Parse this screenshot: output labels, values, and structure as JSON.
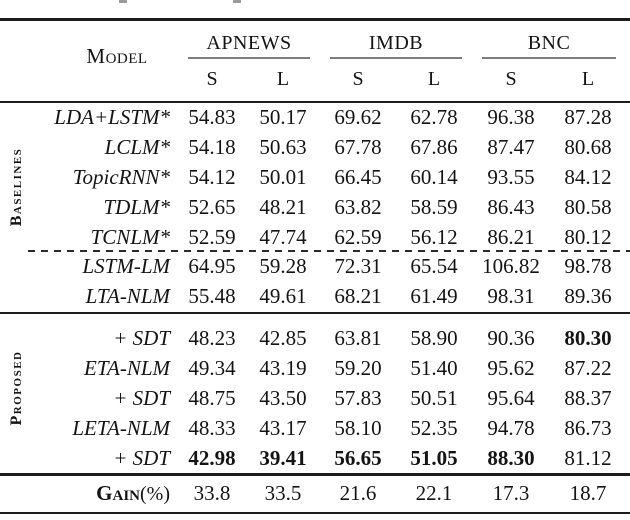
{
  "header": {
    "model_label": "Model",
    "groups": [
      "APNEWS",
      "IMDB",
      "BNC"
    ],
    "sub_columns": [
      "S",
      "L",
      "S",
      "L",
      "S",
      "L"
    ]
  },
  "sections": [
    {
      "side_label": "Baselines",
      "rows": [
        {
          "model": "LDA+LSTM*",
          "values": [
            "54.83",
            "50.17",
            "69.62",
            "62.78",
            "96.38",
            "87.28"
          ]
        },
        {
          "model": "LCLM*",
          "values": [
            "54.18",
            "50.63",
            "67.78",
            "67.86",
            "87.47",
            "80.68"
          ]
        },
        {
          "model": "TopicRNN*",
          "values": [
            "54.12",
            "50.01",
            "66.45",
            "60.14",
            "93.55",
            "84.12"
          ]
        },
        {
          "model": "TDLM*",
          "values": [
            "52.65",
            "48.21",
            "63.82",
            "58.59",
            "86.43",
            "80.58"
          ]
        },
        {
          "model": "TCNLM*",
          "values": [
            "52.59",
            "47.74",
            "62.59",
            "56.12",
            "86.21",
            "80.12"
          ]
        },
        {
          "model": "LSTM-LM",
          "values": [
            "64.95",
            "59.28",
            "72.31",
            "65.54",
            "106.82",
            "98.78"
          ]
        },
        {
          "model": "LTA-NLM",
          "values": [
            "55.48",
            "49.61",
            "68.21",
            "61.49",
            "98.31",
            "89.36"
          ]
        }
      ]
    },
    {
      "side_label": "Proposed",
      "rows": [
        {
          "model": "+ SDT",
          "values": [
            "48.23",
            "42.85",
            "63.81",
            "58.90",
            "90.36",
            "80.30"
          ],
          "bold": [
            5
          ]
        },
        {
          "model": "ETA-NLM",
          "values": [
            "49.34",
            "43.19",
            "59.20",
            "51.40",
            "95.62",
            "87.22"
          ]
        },
        {
          "model": "+ SDT",
          "values": [
            "48.75",
            "43.50",
            "57.83",
            "50.51",
            "95.64",
            "88.37"
          ]
        },
        {
          "model": "LETA-NLM",
          "values": [
            "48.33",
            "43.17",
            "58.10",
            "52.35",
            "94.78",
            "86.73"
          ]
        },
        {
          "model": "+ SDT",
          "values": [
            "42.98",
            "39.41",
            "56.65",
            "51.05",
            "88.30",
            "81.12"
          ],
          "bold": [
            0,
            1,
            2,
            3,
            4
          ]
        }
      ]
    }
  ],
  "footer": {
    "gain_label": "Gain",
    "gain_suffix": "(%)",
    "values": [
      "33.8",
      "33.5",
      "21.6",
      "22.1",
      "17.3",
      "18.7"
    ]
  },
  "colors": {
    "text": "#141414",
    "rule": "#1c1c1c",
    "cmidrule": "#7d7d7d"
  }
}
